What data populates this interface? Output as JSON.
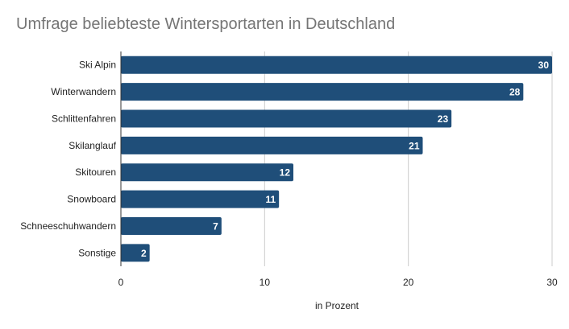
{
  "chart_data": {
    "type": "bar",
    "orientation": "horizontal",
    "title": "Umfrage beliebteste Wintersportarten in Deutschland",
    "xlabel": "in Prozent",
    "ylabel": "",
    "categories": [
      "Ski Alpin",
      "Winterwandern",
      "Schlittenfahren",
      "Skilanglauf",
      "Skitouren",
      "Snowboard",
      "Schneeschuhwandern",
      "Sonstige"
    ],
    "values": [
      30,
      28,
      23,
      21,
      12,
      11,
      7,
      2
    ],
    "data_labels": [
      "30",
      "28",
      "23",
      "21",
      "12",
      "11",
      "7",
      "2"
    ],
    "xlim": [
      0,
      30
    ],
    "x_ticks": [
      "0",
      "10",
      "20",
      "30"
    ],
    "grid": true,
    "legend": "none",
    "bar_color": "#1f4e79",
    "grid_color": "#cccccc",
    "label_color": "#ffffff"
  }
}
